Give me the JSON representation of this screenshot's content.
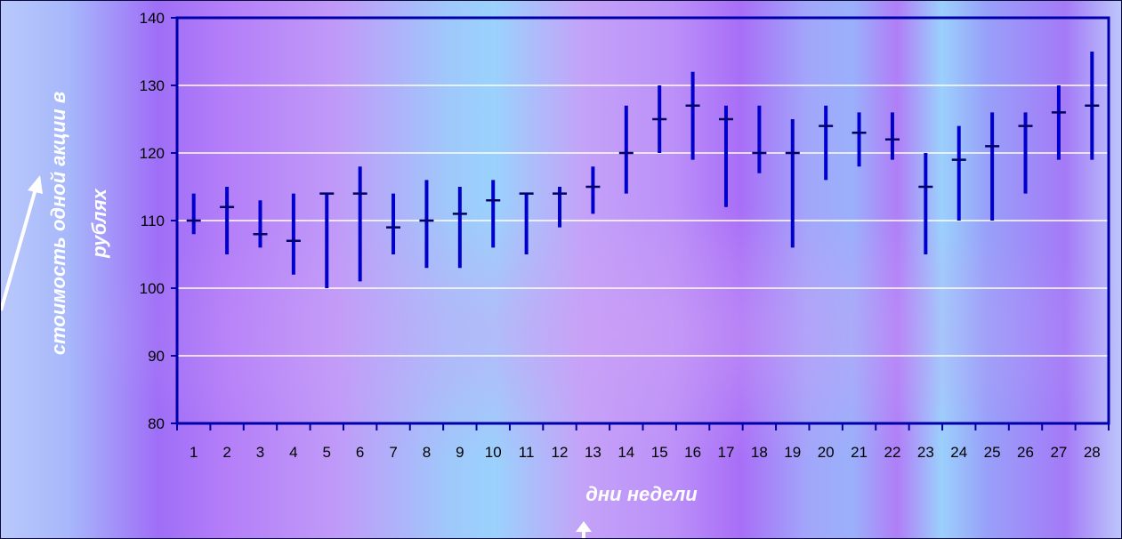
{
  "chart_data": {
    "type": "stock",
    "title": "",
    "xlabel": "дни недели",
    "ylabel": "стоимость одной акции в рублях",
    "ylabel_lines": [
      "стоимость одной акции в",
      "рублях"
    ],
    "ylim": [
      80,
      140
    ],
    "yticks": [
      80,
      90,
      100,
      110,
      120,
      130,
      140
    ],
    "grid": true,
    "legend": "none",
    "categories": [
      "1",
      "2",
      "3",
      "4",
      "5",
      "6",
      "7",
      "8",
      "9",
      "10",
      "11",
      "12",
      "13",
      "14",
      "15",
      "16",
      "17",
      "18",
      "19",
      "20",
      "21",
      "22",
      "23",
      "24",
      "25",
      "26",
      "27",
      "28"
    ],
    "series": [
      {
        "high": [
          114,
          115,
          113,
          114,
          114,
          118,
          114,
          116,
          115,
          116,
          114,
          115,
          118,
          127,
          130,
          132,
          127,
          127,
          125,
          127,
          126,
          126,
          120,
          124,
          126,
          126,
          130,
          135
        ],
        "low": [
          108,
          105,
          106,
          102,
          100,
          101,
          105,
          103,
          103,
          106,
          105,
          109,
          111,
          114,
          120,
          119,
          112,
          117,
          106,
          116,
          118,
          119,
          105,
          110,
          110,
          114,
          119,
          119
        ],
        "close": [
          110,
          112,
          108,
          107,
          114,
          114,
          109,
          110,
          111,
          113,
          114,
          114,
          115,
          120,
          125,
          127,
          125,
          120,
          120,
          124,
          123,
          122,
          115,
          119,
          121,
          124,
          126,
          127
        ]
      }
    ],
    "colors": {
      "bar": "#0000cc",
      "close_tick": "#000066",
      "plot_border": "#0000aa",
      "grid": "#ffffff"
    }
  }
}
